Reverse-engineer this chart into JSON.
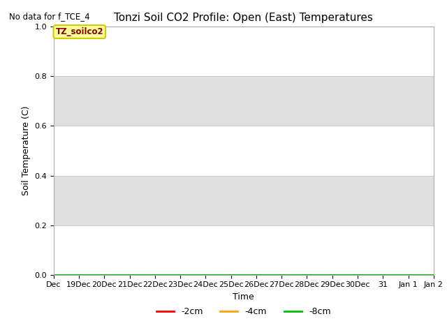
{
  "title": "Tonzi Soil CO2 Profile: Open (East) Temperatures",
  "no_data_label": "No data for f_TCE_4",
  "ylabel": "Soil Temperature (C)",
  "xlabel": "Time",
  "ylim": [
    0.0,
    1.0
  ],
  "yticks": [
    0.0,
    0.2,
    0.4,
    0.6,
    0.8,
    1.0
  ],
  "xtick_labels": [
    "Dec",
    "19Dec",
    "20Dec",
    "21Dec",
    "22Dec",
    "23Dec",
    "24Dec",
    "25Dec",
    "26Dec",
    "27Dec",
    "28Dec",
    "29Dec",
    "30Dec",
    "31",
    "Jan 1",
    "Jan 2"
  ],
  "legend_entries": [
    {
      "label": "-2cm",
      "color": "#ff0000"
    },
    {
      "label": "-4cm",
      "color": "#ffa500"
    },
    {
      "label": "-8cm",
      "color": "#00bb00"
    }
  ],
  "legend_box_label": "TZ_soilco2",
  "legend_box_color": "#ffff99",
  "legend_box_edge_color": "#cccc00",
  "legend_box_text_color": "#880000",
  "flat_line_color": "#00bb00",
  "plot_bg_color": "#ebebeb",
  "band_colors": [
    "#ffffff",
    "#e0e0e0"
  ],
  "title_fontsize": 11,
  "axis_label_fontsize": 9,
  "tick_fontsize": 8,
  "grid_color": "#cccccc"
}
